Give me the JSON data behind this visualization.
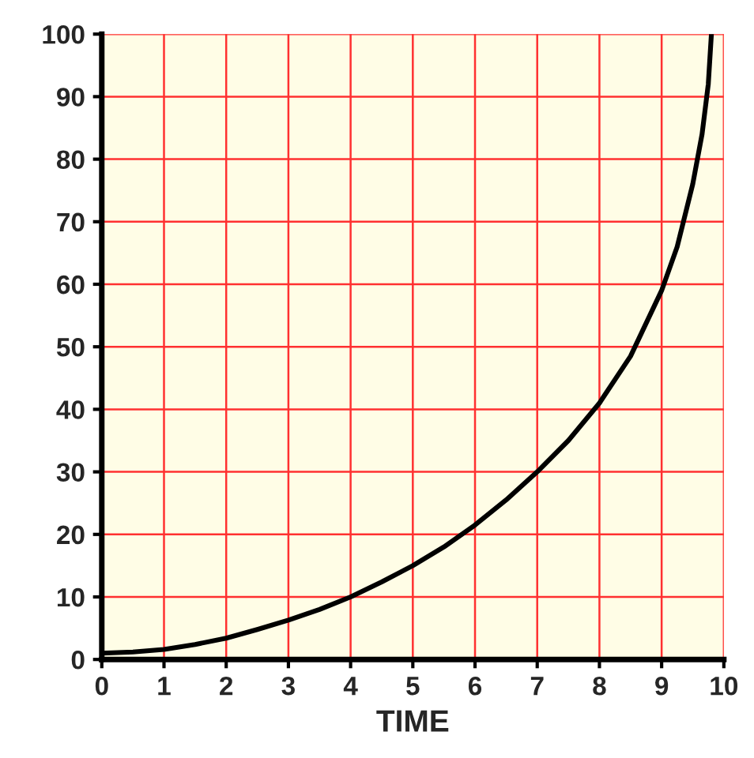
{
  "chart_data": {
    "type": "line",
    "xlabel": "TIME",
    "x": [
      0,
      0.5,
      1,
      1.5,
      2,
      2.5,
      3,
      3.5,
      4,
      4.5,
      5,
      5.5,
      6,
      6.5,
      7,
      7.5,
      8,
      8.5,
      9,
      9.25,
      9.5,
      9.65,
      9.75,
      9.8
    ],
    "series": [
      {
        "color": "#000000",
        "values": [
          1,
          1.2,
          1.6,
          2.4,
          3.4,
          4.8,
          6.3,
          8,
          10,
          12.4,
          15,
          18,
          21.5,
          25.5,
          30,
          35,
          41,
          48.5,
          59,
          66,
          76,
          84,
          92,
          100
        ]
      }
    ],
    "xlim": [
      0,
      10
    ],
    "ylim": [
      0,
      100
    ],
    "xticks": [
      0,
      1,
      2,
      3,
      4,
      5,
      6,
      7,
      8,
      9,
      10
    ],
    "yticks": [
      0,
      10,
      20,
      30,
      40,
      50,
      60,
      70,
      80,
      90,
      100
    ],
    "grid": true,
    "marker": "none",
    "line_style": "solid"
  }
}
